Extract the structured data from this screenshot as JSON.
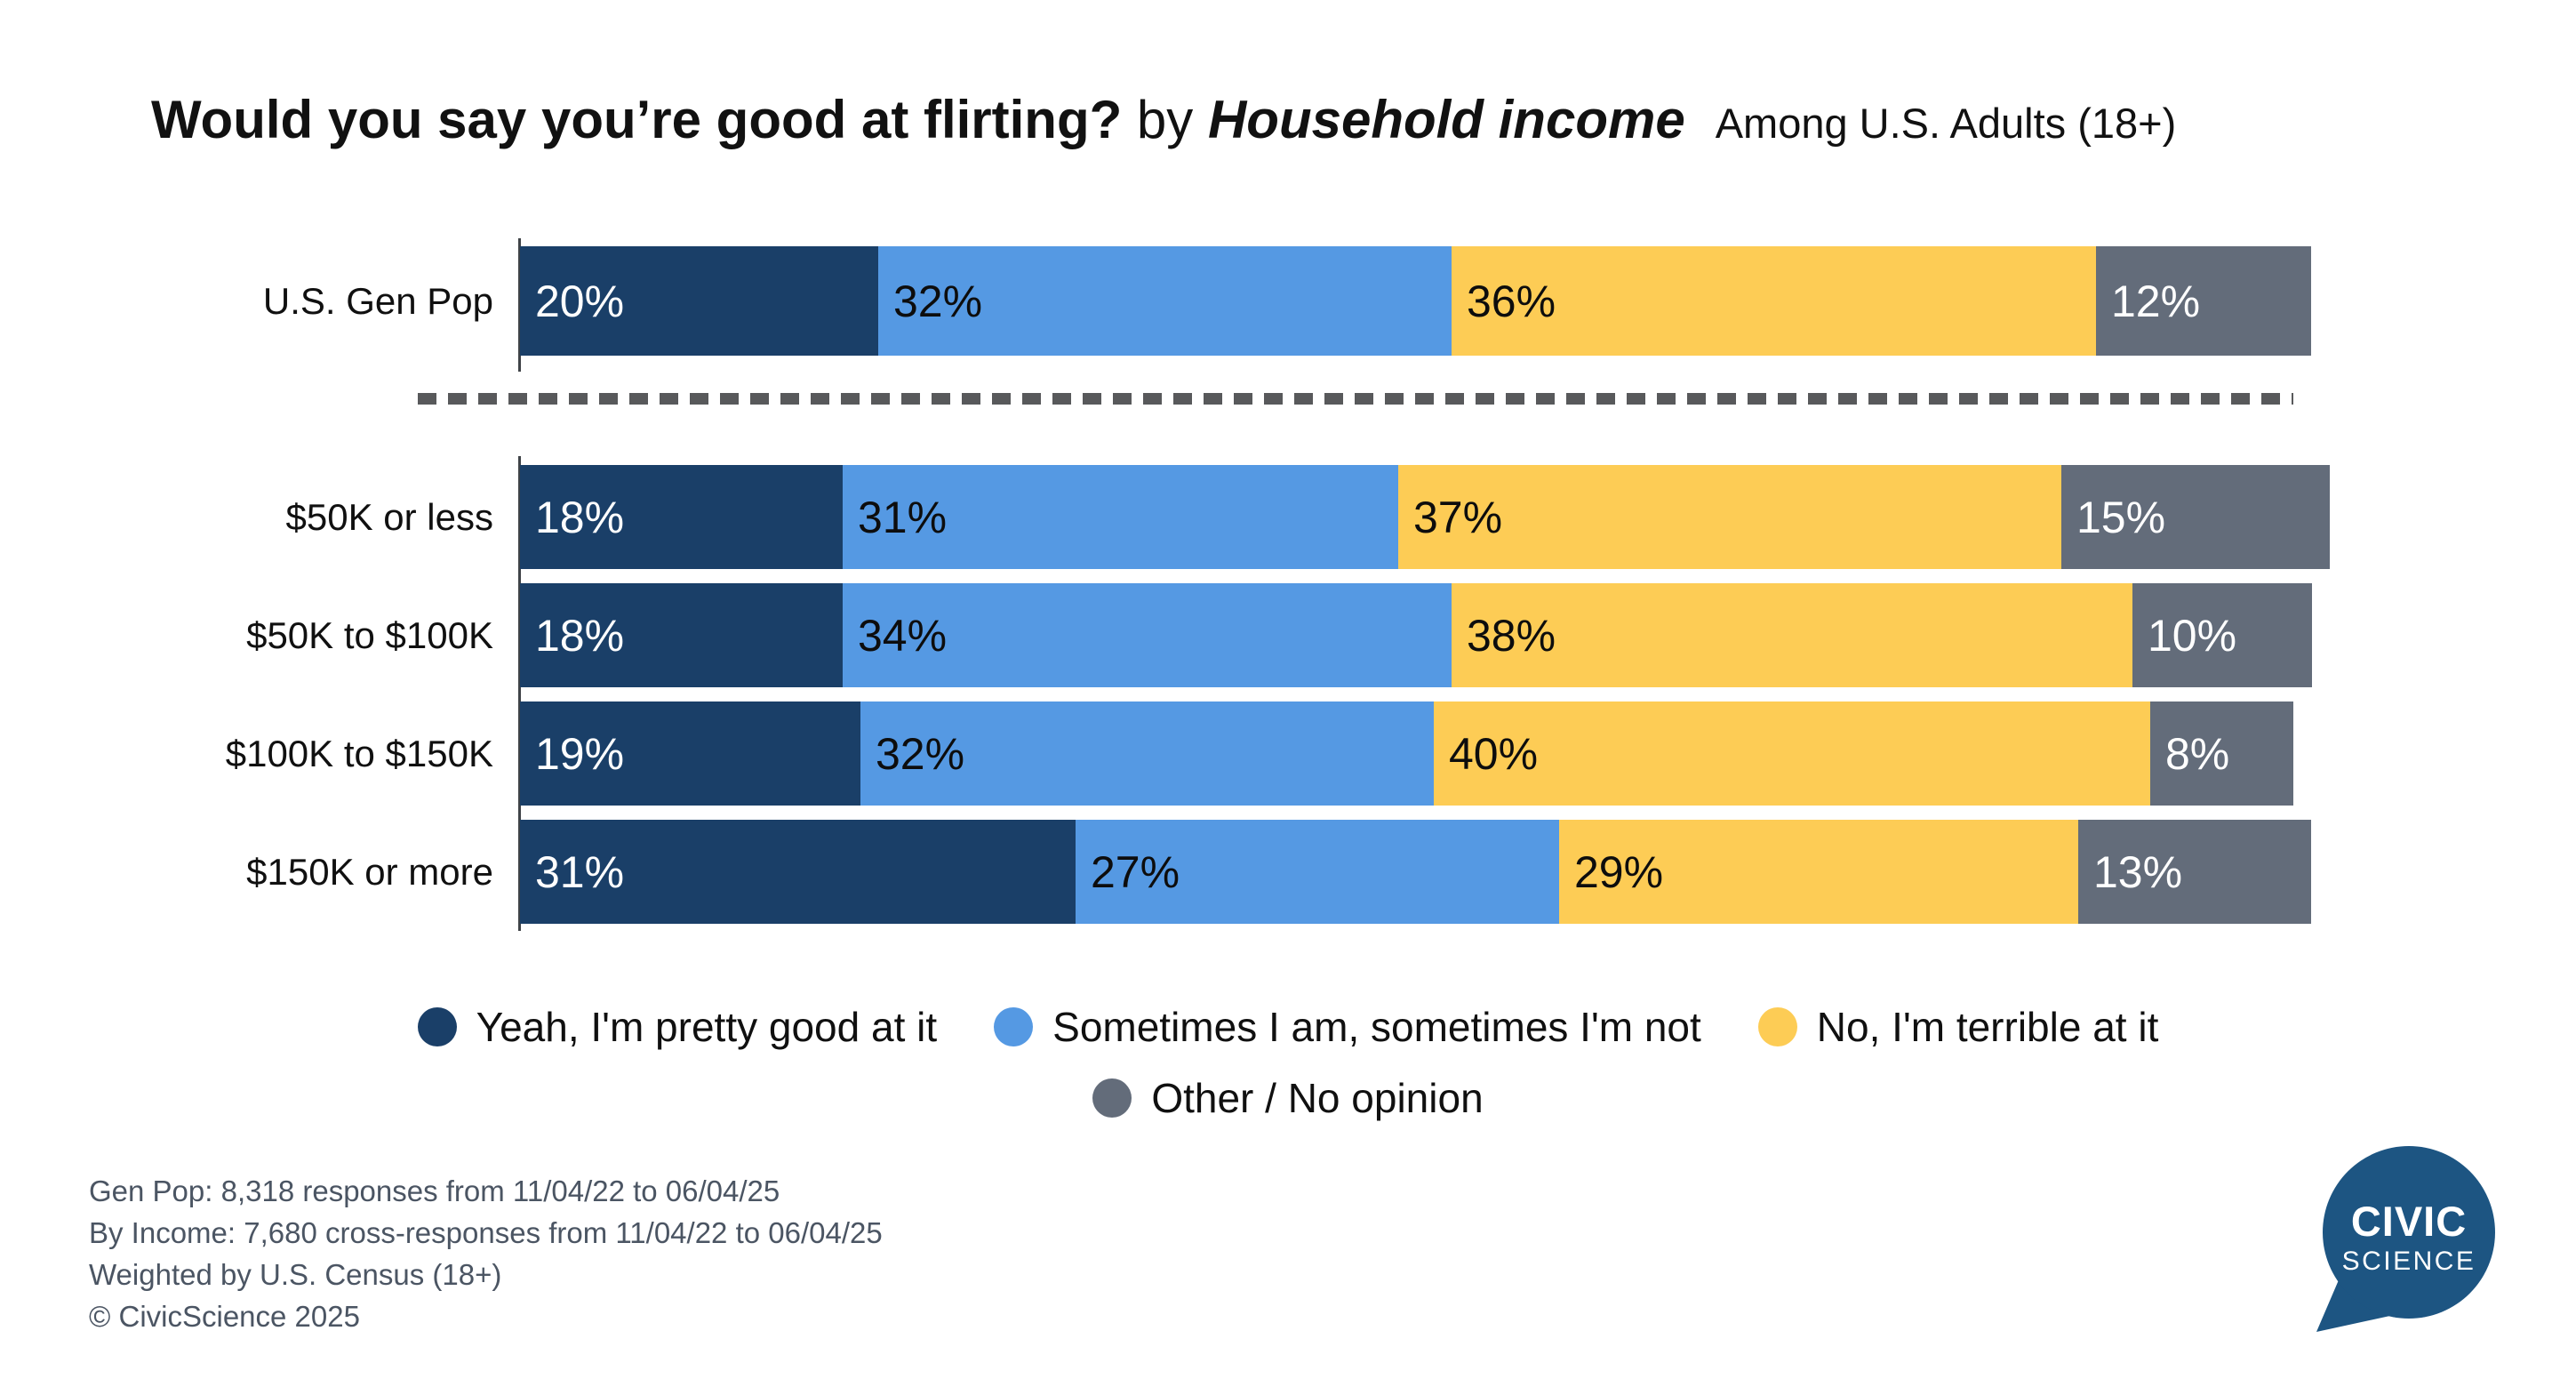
{
  "title": {
    "question": "Would you say you’re good at flirting?",
    "connector": " by ",
    "segment": "Household income",
    "audience": "Among U.S. Adults (18+)"
  },
  "chart_data": {
    "type": "bar",
    "orientation": "horizontal",
    "stacked": true,
    "unit": "%",
    "xlim": [
      0,
      100
    ],
    "grid": false,
    "legend_position": "bottom",
    "legend_rows": [
      3,
      1
    ],
    "title": "Would you say you’re good at flirting? by Household income",
    "subtitle": "Among U.S. Adults (18+)",
    "categories": [
      "U.S. Gen Pop",
      "$50K or less",
      "$50K to $100K",
      "$100K to $150K",
      "$150K or more"
    ],
    "series": [
      {
        "name": "Yeah, I'm pretty good at it",
        "color": "#1a3f68",
        "label_style": "light",
        "values": [
          20,
          18,
          18,
          19,
          31
        ]
      },
      {
        "name": "Sometimes I am, sometimes I'm not",
        "color": "#5599e3",
        "label_style": "dark",
        "values": [
          32,
          31,
          34,
          32,
          27
        ]
      },
      {
        "name": "No, I'm terrible at it",
        "color": "#fdcc55",
        "label_style": "dark",
        "values": [
          36,
          37,
          38,
          40,
          29
        ]
      },
      {
        "name": "Other / No opinion",
        "color": "#636c7a",
        "label_style": "light",
        "values": [
          12,
          15,
          10,
          8,
          13
        ]
      }
    ]
  },
  "footnotes": {
    "line1": "Gen Pop: 8,318 responses from 11/04/22 to 06/04/25",
    "line2": "By Income: 7,680 cross-responses from 11/04/22 to 06/04/25",
    "line3": "Weighted by U.S. Census (18+)",
    "line4": "© CivicScience 2025"
  },
  "logo": {
    "line1": "CIVIC",
    "line2": "SCIENCE",
    "color": "#1d5582"
  },
  "colors": {
    "navy": "#1a3f68",
    "blue": "#5599e3",
    "yellow": "#fdcc55",
    "gray": "#636c7a",
    "divider_dash": "#58595b",
    "axis": "#3f4347",
    "footnote_text": "#4b5563",
    "logo_blue": "#1d5582"
  }
}
